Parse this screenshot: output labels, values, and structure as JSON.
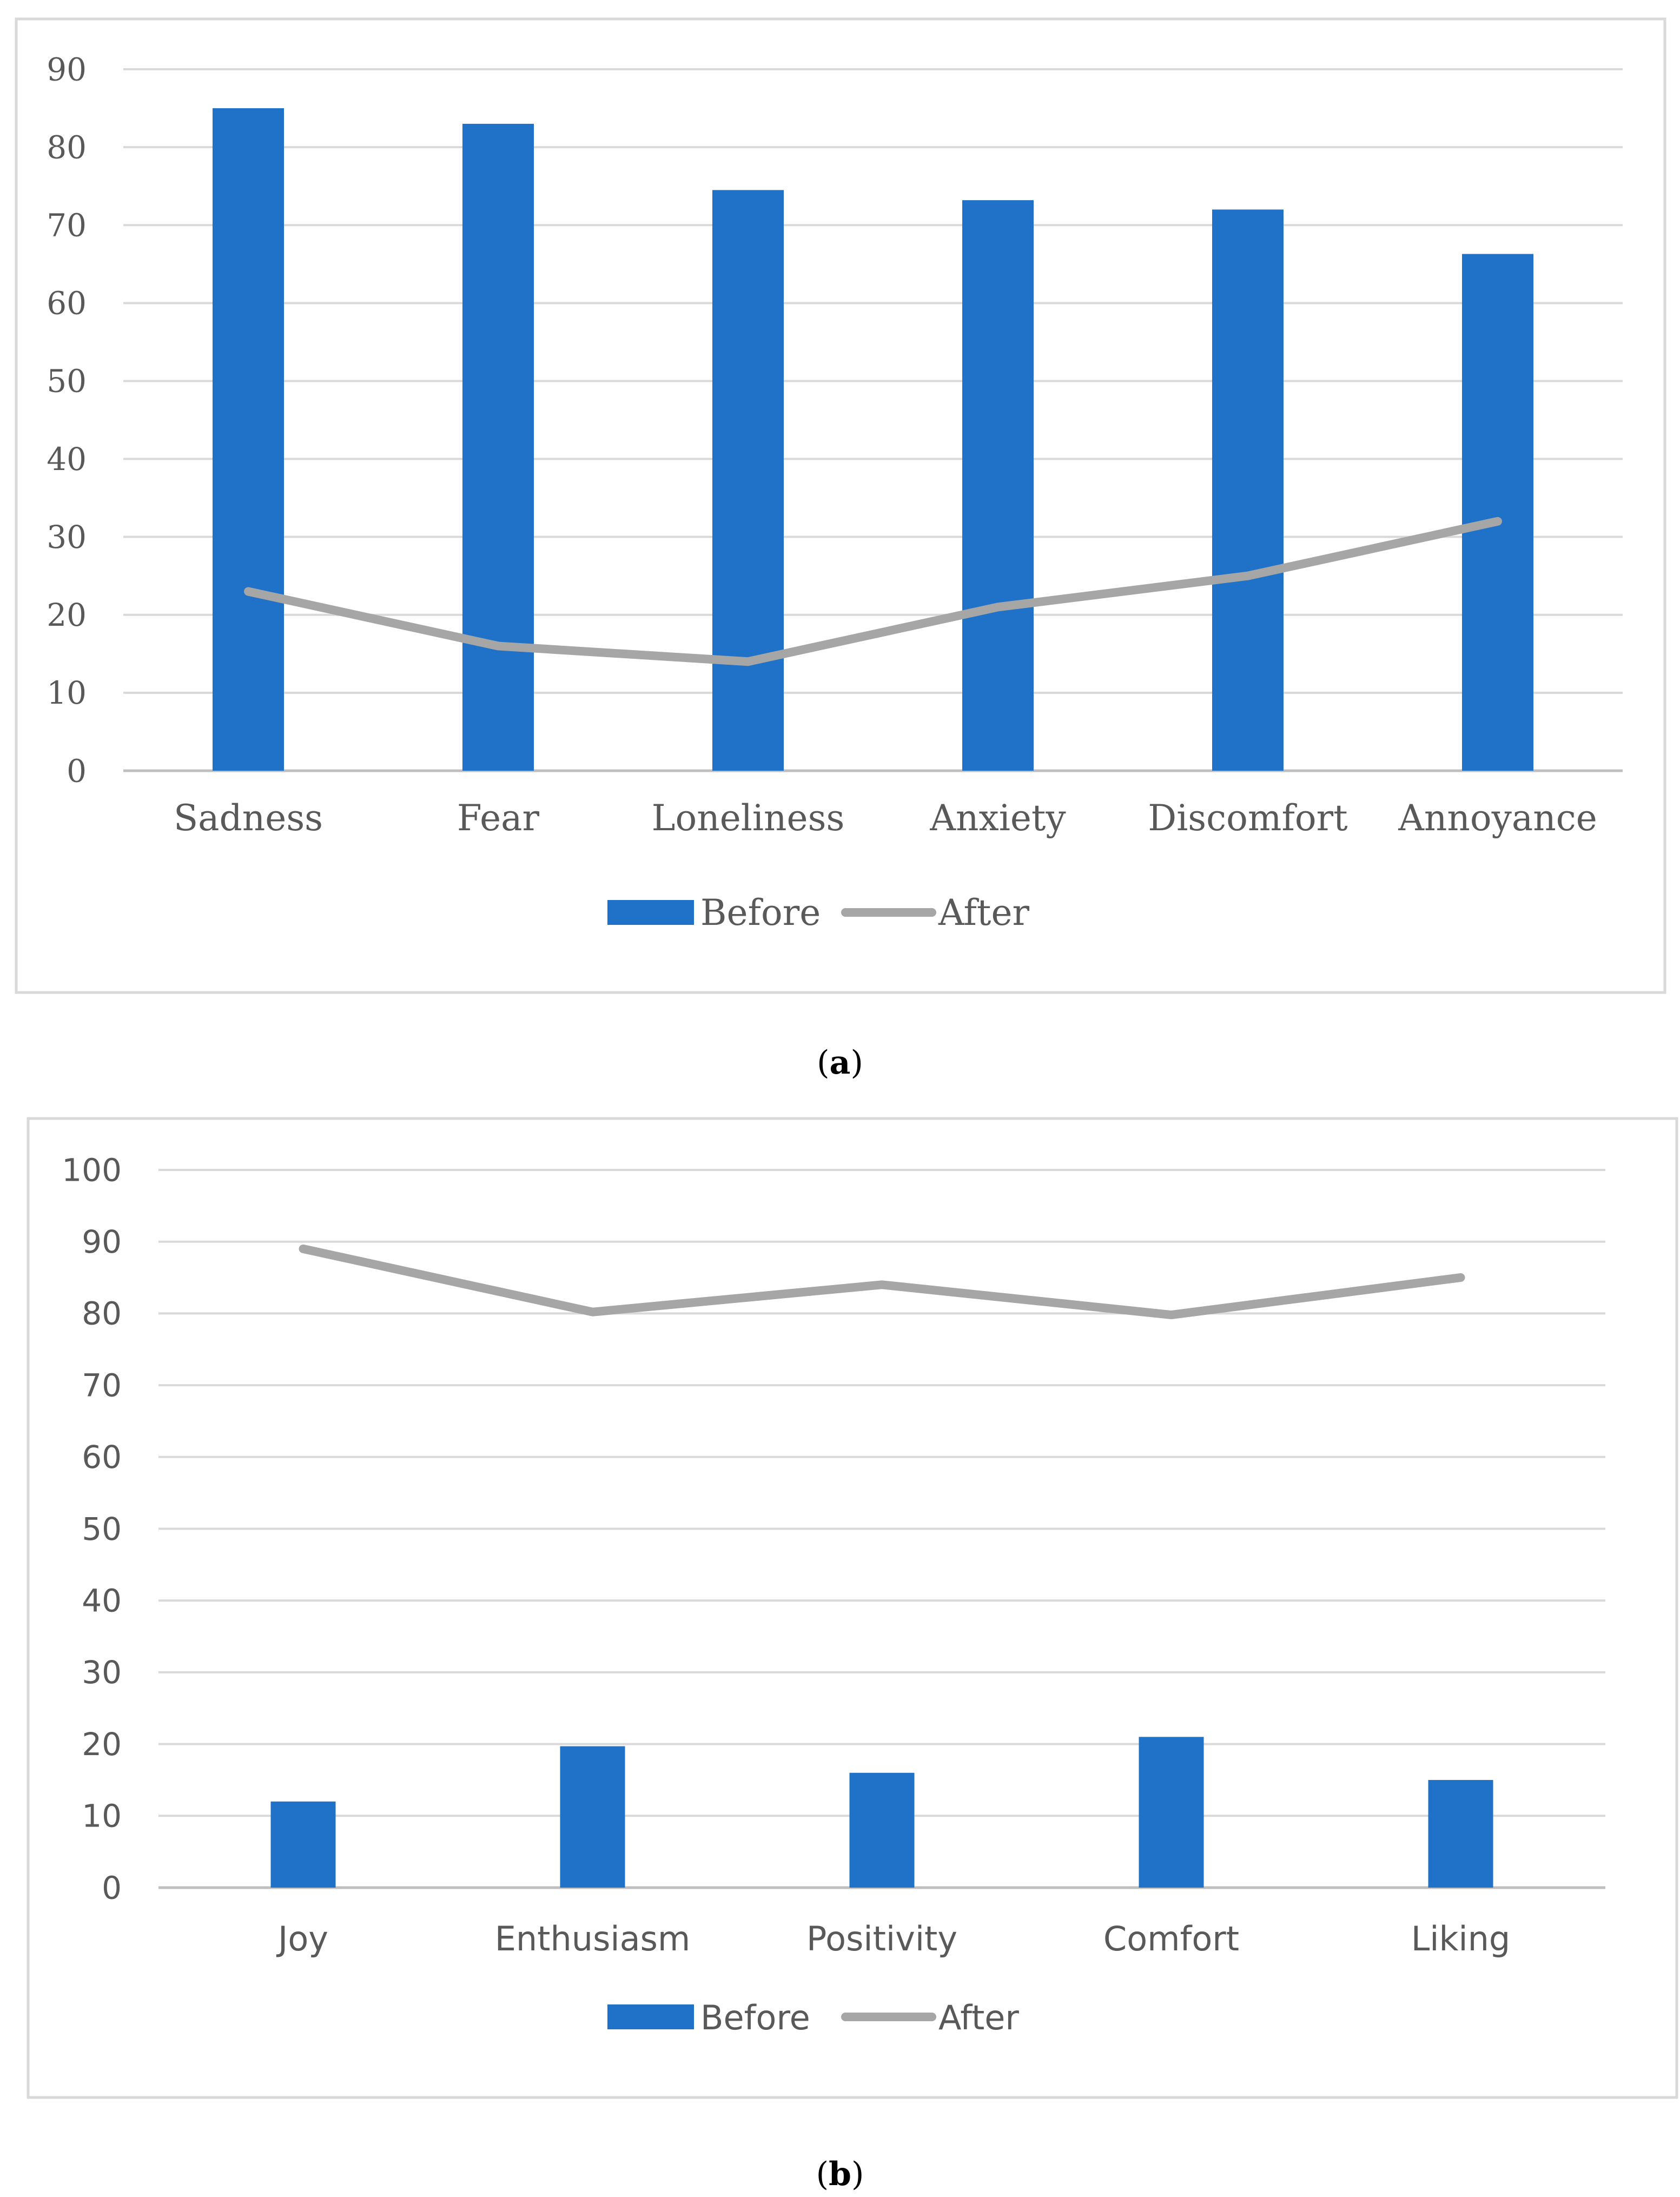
{
  "chart_data": [
    {
      "type": "bar",
      "panel_label": "a",
      "title": "",
      "xlabel": "",
      "ylabel": "",
      "categories": [
        "Sadness",
        "Fear",
        "Loneliness",
        "Anxiety",
        "Discomfort",
        "Annoyance"
      ],
      "series": [
        {
          "name": "Before",
          "type": "bar",
          "color": "#1f72c8",
          "values": [
            85,
            83,
            74.5,
            73.2,
            72,
            66.3
          ]
        },
        {
          "name": "After",
          "type": "line",
          "color": "#a6a6a6",
          "values": [
            23,
            16,
            14,
            21,
            25,
            32
          ]
        }
      ],
      "yticks": [
        0,
        10,
        20,
        30,
        40,
        50,
        60,
        70,
        80,
        90
      ],
      "ylim": [
        0,
        90
      ],
      "grid": true,
      "legend": "bottom-center"
    },
    {
      "type": "bar",
      "panel_label": "b",
      "title": "",
      "xlabel": "",
      "ylabel": "",
      "categories": [
        "Joy",
        "Enthusiasm",
        "Positivity",
        "Comfort",
        "Liking"
      ],
      "series": [
        {
          "name": "Before",
          "type": "bar",
          "color": "#1f72c8",
          "values": [
            12,
            19.7,
            16,
            21,
            15
          ]
        },
        {
          "name": "After",
          "type": "line",
          "color": "#a6a6a6",
          "values": [
            89,
            80.2,
            84,
            79.8,
            85
          ]
        }
      ],
      "yticks": [
        0,
        10,
        20,
        30,
        40,
        50,
        60,
        70,
        80,
        90,
        100
      ],
      "ylim": [
        0,
        100
      ],
      "grid": true,
      "legend": "bottom-center"
    }
  ]
}
